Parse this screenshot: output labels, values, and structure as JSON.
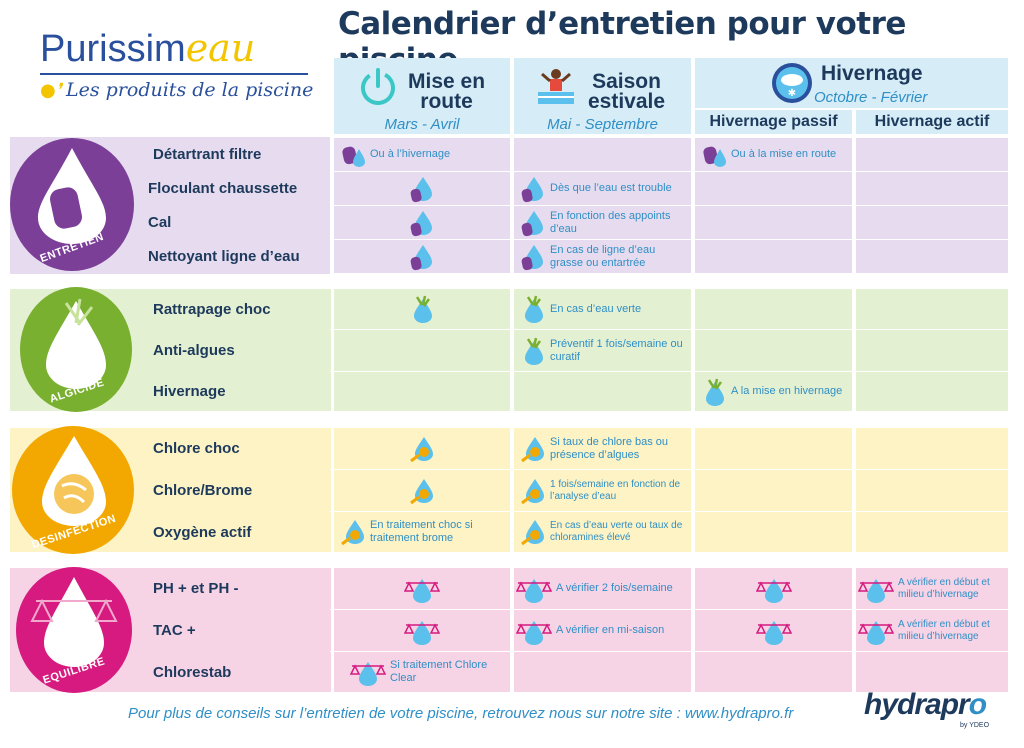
{
  "title": "Calendrier d’entretien pour votre piscine",
  "logo": {
    "name_main": "Purissim",
    "name_accent": "eau",
    "tagline": "Les produits de la piscine"
  },
  "columns": {
    "mise": {
      "name_line1": "Mise en",
      "name_line2": "route",
      "period": "Mars - Avril"
    },
    "saison": {
      "name_line1": "Saison",
      "name_line2": "estivale",
      "period": "Mai - Septembre"
    },
    "hivernage": {
      "name": "Hivernage",
      "period": "Octobre - Février",
      "passif": "Hivernage passif",
      "actif": "Hivernage actif"
    }
  },
  "sections": {
    "entretien": {
      "label": "ENTRETIEN",
      "color": "#7b3f98"
    },
    "algicide": {
      "label": "ALGICIDE",
      "color": "#7ab030"
    },
    "desinfection": {
      "label": "DESINFECTION",
      "color": "#f2a800"
    },
    "equilibre": {
      "label": "EQUILIBRE",
      "color": "#d61a7f"
    }
  },
  "rows": {
    "detartrant": {
      "label": "Détartrant filtre",
      "mise": "Ou à l’hivernage",
      "passif": "Ou à la mise en route"
    },
    "floculant": {
      "label": "Floculant chaussette",
      "saison": "Dès que l’eau est trouble"
    },
    "cal": {
      "label": "Cal",
      "saison": "En fonction des appoints d’eau"
    },
    "nettoyant": {
      "label": "Nettoyant ligne d’eau",
      "saison": "En cas de ligne d’eau grasse ou entartrée"
    },
    "rattrapage": {
      "label": "Rattrapage choc",
      "saison": "En cas d’eau verte"
    },
    "antialgues": {
      "label": "Anti-algues",
      "saison": "Préventif 1 fois/semaine ou curatif"
    },
    "hivernage": {
      "label": "Hivernage",
      "passif": "A la mise en hivernage"
    },
    "chlorechoc": {
      "label": "Chlore choc",
      "saison": "Si taux de chlore bas ou présence d’algues"
    },
    "chlorebrome": {
      "label": "Chlore/Brome",
      "saison": "1 fois/semaine en fonction de l’analyse d’eau"
    },
    "oxygene": {
      "label": "Oxygène actif",
      "mise": "En traitement choc si traitement brome",
      "saison": "En cas d’eau verte ou taux de chloramines élevé"
    },
    "ph": {
      "label": "PH + et PH -",
      "saison": "A vérifier 2 fois/semaine",
      "actif": "A vérifier en début et milieu d’hivernage"
    },
    "tac": {
      "label": "TAC +",
      "saison": "A vérifier en mi-saison",
      "actif": "A vérifier en début et milieu d’hivernage"
    },
    "chlorestab": {
      "label": "Chlorestab",
      "mise": "Si traitement Chlore Clear"
    }
  },
  "footer": "Pour plus de conseils sur l’entretien de votre piscine, retrouvez nous sur notre site : www.hydrapro.fr",
  "brand": {
    "name_a": "hydrapr",
    "name_b": "o",
    "sub": "by YDEO"
  },
  "icons": {
    "sponge": "sponge-icon",
    "algae": "algae-drop-icon",
    "chlorine": "chlorine-drop-icon",
    "balance": "balance-drop-icon"
  }
}
